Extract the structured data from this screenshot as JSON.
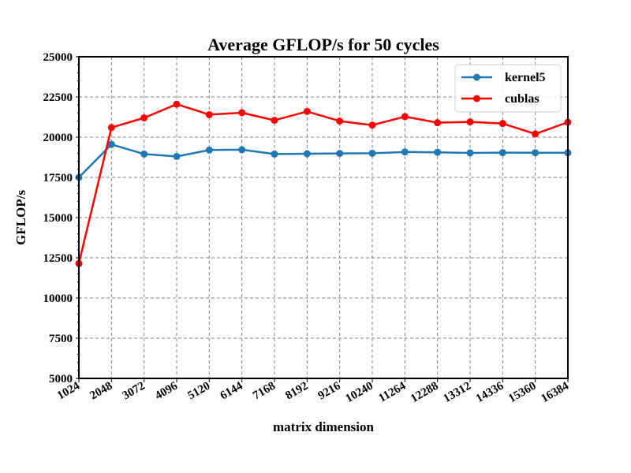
{
  "chart_data": {
    "type": "line",
    "title": "Average GFLOP/s for 50 cycles",
    "xlabel": "matrix dimension",
    "ylabel": "GFLOP/s",
    "x": [
      1024,
      2048,
      3072,
      4096,
      5120,
      6144,
      7168,
      8192,
      9216,
      10240,
      11264,
      12288,
      13312,
      14336,
      15360,
      16384
    ],
    "x_tick_labels": [
      "1024",
      "2048",
      "3072",
      "4096",
      "5120",
      "6144",
      "7168",
      "8192",
      "9216",
      "10240",
      "11264",
      "12288",
      "13312",
      "14336",
      "15360",
      "16384"
    ],
    "ylim": [
      5000,
      25000
    ],
    "y_ticks": [
      5000,
      7500,
      10000,
      12500,
      15000,
      17500,
      20000,
      22500,
      25000
    ],
    "grid": true,
    "legend_position": "upper right",
    "series": [
      {
        "name": "kernel5",
        "color": "#1f77b4",
        "marker": "circle",
        "values": [
          17500,
          19550,
          18950,
          18800,
          19200,
          19220,
          18950,
          18970,
          18990,
          19000,
          19080,
          19060,
          19020,
          19040,
          19030,
          19030
        ]
      },
      {
        "name": "cublas",
        "color": "#ff0000",
        "marker": "circle",
        "values": [
          12150,
          20600,
          21200,
          22050,
          21400,
          21520,
          21050,
          21600,
          21000,
          20750,
          21280,
          20900,
          20950,
          20850,
          20200,
          20930
        ]
      }
    ]
  }
}
